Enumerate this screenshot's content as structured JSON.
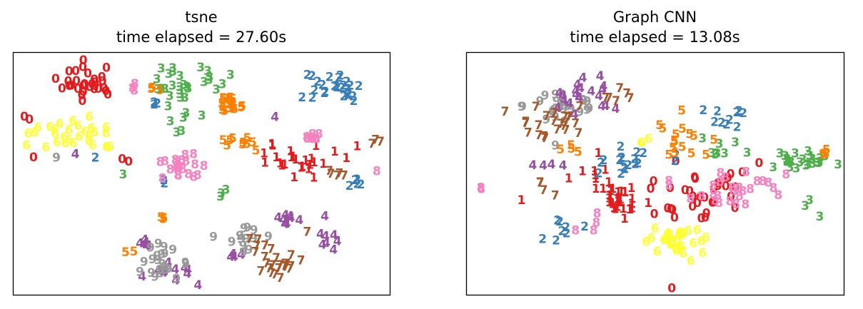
{
  "figure": {
    "background": "#ffffff",
    "class_colors": {
      "0": "#e41a1c",
      "1": "#e41a1c",
      "2": "#377eb8",
      "3": "#4daf4a",
      "4": "#984ea3",
      "5": "#ff7f00",
      "6": "#ffff33",
      "7": "#a65628",
      "8": "#f781bf",
      "9": "#999999"
    }
  },
  "chart_data": [
    {
      "type": "scatter",
      "title": "tsne",
      "subtitle": "time elapsed = 27.60s",
      "xlabel": "",
      "ylabel": "",
      "axes_visible": false,
      "grid": false,
      "marker": "digit label (0-9), color by class",
      "clusters": [
        {
          "label": "0",
          "center": [
            0.2,
            0.13
          ],
          "spread": [
            0.07,
            0.06
          ],
          "count": 30
        },
        {
          "label": "0",
          "center": [
            0.04,
            0.27
          ],
          "spread": [
            0.01,
            0.01
          ],
          "count": 2
        },
        {
          "label": "0",
          "center": [
            0.06,
            0.43
          ],
          "spread": [
            0.01,
            0.01
          ],
          "count": 1
        },
        {
          "label": "0",
          "center": [
            0.3,
            0.45
          ],
          "spread": [
            0.02,
            0.02
          ],
          "count": 2
        },
        {
          "label": "6",
          "center": [
            0.16,
            0.34
          ],
          "spread": [
            0.1,
            0.06
          ],
          "count": 30
        },
        {
          "label": "3",
          "center": [
            0.45,
            0.12
          ],
          "spread": [
            0.1,
            0.07
          ],
          "count": 28
        },
        {
          "label": "3",
          "center": [
            0.47,
            0.28
          ],
          "spread": [
            0.05,
            0.04
          ],
          "count": 6
        },
        {
          "label": "3",
          "center": [
            0.29,
            0.5
          ],
          "spread": [
            0.01,
            0.01
          ],
          "count": 1
        },
        {
          "label": "3",
          "center": [
            0.55,
            0.58
          ],
          "spread": [
            0.02,
            0.02
          ],
          "count": 3
        },
        {
          "label": "2",
          "center": [
            0.85,
            0.15
          ],
          "spread": [
            0.06,
            0.06
          ],
          "count": 26
        },
        {
          "label": "2",
          "center": [
            0.37,
            0.22
          ],
          "spread": [
            0.02,
            0.02
          ],
          "count": 3
        },
        {
          "label": "2",
          "center": [
            0.4,
            0.54
          ],
          "spread": [
            0.01,
            0.01
          ],
          "count": 2
        },
        {
          "label": "2",
          "center": [
            0.9,
            0.54
          ],
          "spread": [
            0.03,
            0.02
          ],
          "count": 5
        },
        {
          "label": "2",
          "center": [
            0.22,
            0.43
          ],
          "spread": [
            0.01,
            0.01
          ],
          "count": 1
        },
        {
          "label": "5",
          "center": [
            0.58,
            0.22
          ],
          "spread": [
            0.04,
            0.04
          ],
          "count": 18
        },
        {
          "label": "5",
          "center": [
            0.61,
            0.38
          ],
          "spread": [
            0.04,
            0.03
          ],
          "count": 10
        },
        {
          "label": "5",
          "center": [
            0.37,
            0.16
          ],
          "spread": [
            0.02,
            0.02
          ],
          "count": 4
        },
        {
          "label": "5",
          "center": [
            0.4,
            0.68
          ],
          "spread": [
            0.02,
            0.02
          ],
          "count": 3
        },
        {
          "label": "5",
          "center": [
            0.32,
            0.82
          ],
          "spread": [
            0.01,
            0.01
          ],
          "count": 2
        },
        {
          "label": "1",
          "center": [
            0.75,
            0.45
          ],
          "spread": [
            0.1,
            0.05
          ],
          "count": 26
        },
        {
          "label": "8",
          "center": [
            0.44,
            0.48
          ],
          "spread": [
            0.04,
            0.06
          ],
          "count": 22
        },
        {
          "label": "8",
          "center": [
            0.8,
            0.35
          ],
          "spread": [
            0.04,
            0.02
          ],
          "count": 8
        },
        {
          "label": "8",
          "center": [
            0.32,
            0.14
          ],
          "spread": [
            0.02,
            0.02
          ],
          "count": 3
        },
        {
          "label": "8",
          "center": [
            0.97,
            0.5
          ],
          "spread": [
            0.01,
            0.01
          ],
          "count": 1
        },
        {
          "label": "4",
          "center": [
            0.43,
            0.92
          ],
          "spread": [
            0.05,
            0.04
          ],
          "count": 12
        },
        {
          "label": "4",
          "center": [
            0.73,
            0.69
          ],
          "spread": [
            0.03,
            0.02
          ],
          "count": 8
        },
        {
          "label": "4",
          "center": [
            0.84,
            0.76
          ],
          "spread": [
            0.02,
            0.04
          ],
          "count": 8
        },
        {
          "label": "4",
          "center": [
            0.35,
            0.79
          ],
          "spread": [
            0.02,
            0.02
          ],
          "count": 6
        },
        {
          "label": "4",
          "center": [
            0.59,
            0.84
          ],
          "spread": [
            0.02,
            0.02
          ],
          "count": 4
        },
        {
          "label": "4",
          "center": [
            0.16,
            0.42
          ],
          "spread": [
            0.01,
            0.01
          ],
          "count": 1
        },
        {
          "label": "4",
          "center": [
            0.7,
            0.27
          ],
          "spread": [
            0.01,
            0.01
          ],
          "count": 1
        },
        {
          "label": "9",
          "center": [
            0.4,
            0.87
          ],
          "spread": [
            0.06,
            0.05
          ],
          "count": 22
        },
        {
          "label": "9",
          "center": [
            0.6,
            0.77
          ],
          "spread": [
            0.07,
            0.04
          ],
          "count": 14
        },
        {
          "label": "9",
          "center": [
            0.11,
            0.44
          ],
          "spread": [
            0.01,
            0.01
          ],
          "count": 1
        },
        {
          "label": "7",
          "center": [
            0.7,
            0.85
          ],
          "spread": [
            0.06,
            0.07
          ],
          "count": 26
        },
        {
          "label": "7",
          "center": [
            0.85,
            0.51
          ],
          "spread": [
            0.04,
            0.03
          ],
          "count": 5
        },
        {
          "label": "7",
          "center": [
            0.97,
            0.37
          ],
          "spread": [
            0.02,
            0.02
          ],
          "count": 3
        }
      ]
    },
    {
      "type": "scatter",
      "title": "Graph CNN",
      "subtitle": "time elapsed = 13.08s",
      "xlabel": "",
      "ylabel": "",
      "axes_visible": false,
      "grid": false,
      "marker": "digit label (0-9), color by class",
      "clusters": [
        {
          "label": "9",
          "center": [
            0.26,
            0.23
          ],
          "spread": [
            0.09,
            0.08
          ],
          "count": 26
        },
        {
          "label": "4",
          "center": [
            0.3,
            0.17
          ],
          "spread": [
            0.1,
            0.07
          ],
          "count": 20
        },
        {
          "label": "4",
          "center": [
            0.2,
            0.45
          ],
          "spread": [
            0.06,
            0.04
          ],
          "count": 4
        },
        {
          "label": "7",
          "center": [
            0.23,
            0.28
          ],
          "spread": [
            0.08,
            0.06
          ],
          "count": 22
        },
        {
          "label": "7",
          "center": [
            0.4,
            0.2
          ],
          "spread": [
            0.05,
            0.05
          ],
          "count": 6
        },
        {
          "label": "7",
          "center": [
            0.2,
            0.55
          ],
          "spread": [
            0.04,
            0.05
          ],
          "count": 4
        },
        {
          "label": "1",
          "center": [
            0.41,
            0.6
          ],
          "spread": [
            0.05,
            0.06
          ],
          "count": 32
        },
        {
          "label": "1",
          "center": [
            0.34,
            0.48
          ],
          "spread": [
            0.04,
            0.07
          ],
          "count": 6
        },
        {
          "label": "1",
          "center": [
            0.14,
            0.6
          ],
          "spread": [
            0.01,
            0.01
          ],
          "count": 1
        },
        {
          "label": "6",
          "center": [
            0.57,
            0.79
          ],
          "spread": [
            0.07,
            0.05
          ],
          "count": 30
        },
        {
          "label": "6",
          "center": [
            0.46,
            0.35
          ],
          "spread": [
            0.03,
            0.03
          ],
          "count": 3
        },
        {
          "label": "0",
          "center": [
            0.6,
            0.62
          ],
          "spread": [
            0.13,
            0.07
          ],
          "count": 26
        },
        {
          "label": "0",
          "center": [
            0.69,
            0.52
          ],
          "spread": [
            0.06,
            0.06
          ],
          "count": 8
        },
        {
          "label": "0",
          "center": [
            0.55,
            0.98
          ],
          "spread": [
            0.01,
            0.01
          ],
          "count": 1
        },
        {
          "label": "3",
          "center": [
            0.88,
            0.45
          ],
          "spread": [
            0.07,
            0.03
          ],
          "count": 26
        },
        {
          "label": "3",
          "center": [
            0.66,
            0.4
          ],
          "spread": [
            0.06,
            0.06
          ],
          "count": 8
        },
        {
          "label": "3",
          "center": [
            0.9,
            0.63
          ],
          "spread": [
            0.03,
            0.04
          ],
          "count": 3
        },
        {
          "label": "8",
          "center": [
            0.7,
            0.55
          ],
          "spread": [
            0.13,
            0.08
          ],
          "count": 28
        },
        {
          "label": "8",
          "center": [
            0.33,
            0.71
          ],
          "spread": [
            0.04,
            0.04
          ],
          "count": 4
        },
        {
          "label": "8",
          "center": [
            0.04,
            0.56
          ],
          "spread": [
            0.01,
            0.01
          ],
          "count": 2
        },
        {
          "label": "2",
          "center": [
            0.43,
            0.45
          ],
          "spread": [
            0.12,
            0.1
          ],
          "count": 18
        },
        {
          "label": "2",
          "center": [
            0.7,
            0.27
          ],
          "spread": [
            0.07,
            0.05
          ],
          "count": 10
        },
        {
          "label": "2",
          "center": [
            0.25,
            0.74
          ],
          "spread": [
            0.05,
            0.05
          ],
          "count": 8
        },
        {
          "label": "5",
          "center": [
            0.58,
            0.38
          ],
          "spread": [
            0.08,
            0.08
          ],
          "count": 16
        },
        {
          "label": "5",
          "center": [
            0.95,
            0.42
          ],
          "spread": [
            0.02,
            0.02
          ],
          "count": 4
        },
        {
          "label": "5",
          "center": [
            0.27,
            0.4
          ],
          "spread": [
            0.03,
            0.03
          ],
          "count": 4
        }
      ]
    }
  ]
}
